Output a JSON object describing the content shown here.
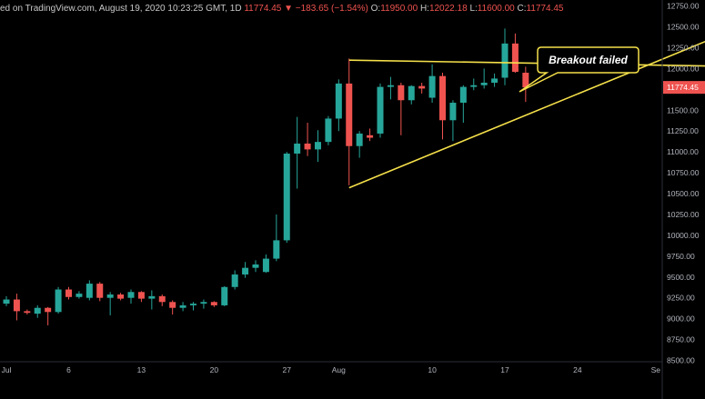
{
  "header": {
    "source": "ed on TradingView.com, August 19, 2020 10:23:25 GMT",
    "interval": "1D",
    "last_value": "11774.45",
    "change": "−183.65 (−1.54%)",
    "open_label": "O:",
    "open": "11950.00",
    "high_label": "H:",
    "high": "12022.18",
    "low_label": "L:",
    "low": "11600.00",
    "close_label": "C:",
    "close": "11774.45"
  },
  "colors": {
    "up": "#26a69a",
    "down": "#ef5350",
    "trendline": "#f5e04a",
    "price_tag": "#ef5350",
    "callout_bg": "#000000",
    "callout_border": "#f5e04a"
  },
  "annotation": "Breakout failed",
  "current_price_label": "11774.45",
  "chart_data": {
    "type": "candlestick",
    "grid": false,
    "ylim": [
      8500,
      12850
    ],
    "y_ticks": [
      12750,
      12500,
      12250,
      12000,
      11750,
      11500,
      11250,
      11000,
      10750,
      10500,
      10250,
      10000,
      9750,
      9500,
      9250,
      9000,
      8750,
      8500
    ],
    "y_tick_labels": [
      "12750.00",
      "12500.00",
      "12250.00",
      "12000.00",
      "",
      "11500.00",
      "11250.00",
      "11000.00",
      "10750.00",
      "10500.00",
      "10250.00",
      "10000.00",
      "9750.00",
      "9500.00",
      "9250.00",
      "9000.00",
      "8750.00",
      "8500.00"
    ],
    "x_ticks": [
      {
        "label": "Jul",
        "day": 0
      },
      {
        "label": "6",
        "day": 6
      },
      {
        "label": "13",
        "day": 13
      },
      {
        "label": "20",
        "day": 20
      },
      {
        "label": "27",
        "day": 27
      },
      {
        "label": "Aug",
        "day": 32
      },
      {
        "label": "10",
        "day": 41
      },
      {
        "label": "17",
        "day": 48
      },
      {
        "label": "24",
        "day": 55
      },
      {
        "label": "Se",
        "day": 63
      }
    ],
    "candles": [
      {
        "day": -1,
        "o": 9250,
        "h": 9310,
        "l": 9080,
        "c": 9180
      },
      {
        "day": 0,
        "o": 9180,
        "h": 9270,
        "l": 9150,
        "c": 9230
      },
      {
        "day": 1,
        "o": 9230,
        "h": 9300,
        "l": 8980,
        "c": 9090
      },
      {
        "day": 2,
        "o": 9090,
        "h": 9110,
        "l": 9050,
        "c": 9070
      },
      {
        "day": 3,
        "o": 9060,
        "h": 9160,
        "l": 9010,
        "c": 9130
      },
      {
        "day": 4,
        "o": 9130,
        "h": 9140,
        "l": 8920,
        "c": 9080
      },
      {
        "day": 5,
        "o": 9080,
        "h": 9380,
        "l": 9060,
        "c": 9350
      },
      {
        "day": 6,
        "o": 9350,
        "h": 9380,
        "l": 9230,
        "c": 9260
      },
      {
        "day": 7,
        "o": 9260,
        "h": 9330,
        "l": 9240,
        "c": 9300
      },
      {
        "day": 8,
        "o": 9250,
        "h": 9460,
        "l": 9220,
        "c": 9420
      },
      {
        "day": 9,
        "o": 9420,
        "h": 9440,
        "l": 9210,
        "c": 9250
      },
      {
        "day": 10,
        "o": 9250,
        "h": 9320,
        "l": 9040,
        "c": 9290
      },
      {
        "day": 11,
        "o": 9290,
        "h": 9310,
        "l": 9220,
        "c": 9240
      },
      {
        "day": 12,
        "o": 9250,
        "h": 9350,
        "l": 9180,
        "c": 9320
      },
      {
        "day": 13,
        "o": 9320,
        "h": 9330,
        "l": 9200,
        "c": 9240
      },
      {
        "day": 14,
        "o": 9240,
        "h": 9340,
        "l": 9110,
        "c": 9270
      },
      {
        "day": 15,
        "o": 9270,
        "h": 9290,
        "l": 9150,
        "c": 9200
      },
      {
        "day": 16,
        "o": 9200,
        "h": 9220,
        "l": 9050,
        "c": 9130
      },
      {
        "day": 17,
        "o": 9130,
        "h": 9200,
        "l": 9090,
        "c": 9160
      },
      {
        "day": 18,
        "o": 9160,
        "h": 9200,
        "l": 9100,
        "c": 9180
      },
      {
        "day": 19,
        "o": 9180,
        "h": 9230,
        "l": 9120,
        "c": 9200
      },
      {
        "day": 20,
        "o": 9200,
        "h": 9210,
        "l": 9140,
        "c": 9160
      },
      {
        "day": 21,
        "o": 9160,
        "h": 9390,
        "l": 9150,
        "c": 9380
      },
      {
        "day": 22,
        "o": 9380,
        "h": 9580,
        "l": 9350,
        "c": 9530
      },
      {
        "day": 23,
        "o": 9530,
        "h": 9680,
        "l": 9490,
        "c": 9610
      },
      {
        "day": 24,
        "o": 9610,
        "h": 9700,
        "l": 9560,
        "c": 9650
      },
      {
        "day": 25,
        "o": 9560,
        "h": 9770,
        "l": 9550,
        "c": 9720
      },
      {
        "day": 26,
        "o": 9720,
        "h": 10250,
        "l": 9690,
        "c": 9940
      },
      {
        "day": 27,
        "o": 9940,
        "h": 11000,
        "l": 9910,
        "c": 10980
      },
      {
        "day": 28,
        "o": 10980,
        "h": 11420,
        "l": 10560,
        "c": 11100
      },
      {
        "day": 29,
        "o": 11100,
        "h": 11350,
        "l": 10950,
        "c": 11030
      },
      {
        "day": 30,
        "o": 11030,
        "h": 11260,
        "l": 10880,
        "c": 11120
      },
      {
        "day": 31,
        "o": 11120,
        "h": 11430,
        "l": 11080,
        "c": 11400
      },
      {
        "day": 32,
        "o": 11400,
        "h": 11870,
        "l": 11250,
        "c": 11820
      },
      {
        "day": 33,
        "o": 11820,
        "h": 12120,
        "l": 10600,
        "c": 11070
      },
      {
        "day": 34,
        "o": 11070,
        "h": 11250,
        "l": 10930,
        "c": 11220
      },
      {
        "day": 35,
        "o": 11200,
        "h": 11280,
        "l": 11130,
        "c": 11170
      },
      {
        "day": 36,
        "o": 11220,
        "h": 11820,
        "l": 11170,
        "c": 11780
      },
      {
        "day": 37,
        "o": 11780,
        "h": 11900,
        "l": 11630,
        "c": 11800
      },
      {
        "day": 38,
        "o": 11800,
        "h": 11830,
        "l": 11200,
        "c": 11620
      },
      {
        "day": 39,
        "o": 11620,
        "h": 11800,
        "l": 11570,
        "c": 11790
      },
      {
        "day": 40,
        "o": 11790,
        "h": 11830,
        "l": 11700,
        "c": 11760
      },
      {
        "day": 41,
        "o": 11650,
        "h": 12050,
        "l": 11590,
        "c": 11910
      },
      {
        "day": 42,
        "o": 11910,
        "h": 11950,
        "l": 11150,
        "c": 11380
      },
      {
        "day": 43,
        "o": 11380,
        "h": 11620,
        "l": 11130,
        "c": 11590
      },
      {
        "day": 44,
        "o": 11590,
        "h": 11800,
        "l": 11350,
        "c": 11780
      },
      {
        "day": 45,
        "o": 11780,
        "h": 11880,
        "l": 11740,
        "c": 11800
      },
      {
        "day": 46,
        "o": 11800,
        "h": 12000,
        "l": 11760,
        "c": 11830
      },
      {
        "day": 47,
        "o": 11830,
        "h": 11940,
        "l": 11780,
        "c": 11880
      },
      {
        "day": 48,
        "o": 11890,
        "h": 12480,
        "l": 11800,
        "c": 12300
      },
      {
        "day": 49,
        "o": 12300,
        "h": 12420,
        "l": 11950,
        "c": 11960
      },
      {
        "day": 50,
        "o": 11950,
        "h": 12022,
        "l": 11600,
        "c": 11774
      }
    ],
    "trendlines": [
      {
        "name": "upper",
        "from": {
          "day": 33,
          "price": 12100
        },
        "to": {
          "day": 68,
          "price": 12030
        }
      },
      {
        "name": "lower",
        "from": {
          "day": 33,
          "price": 10570
        },
        "to": {
          "day": 68,
          "price": 12360
        }
      }
    ]
  }
}
